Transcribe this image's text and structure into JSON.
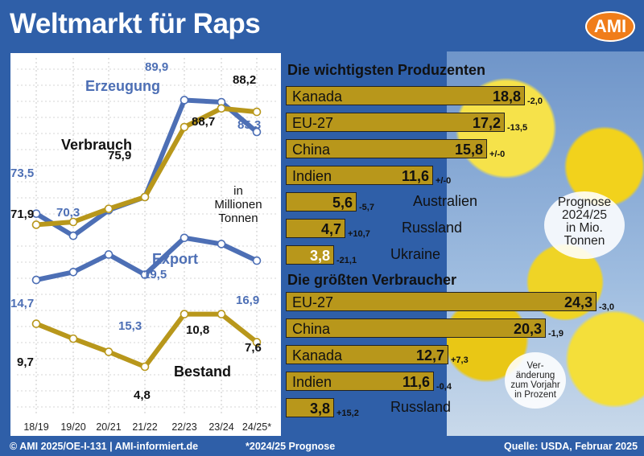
{
  "title": "Weltmarkt für Raps",
  "logo": "AMI",
  "footer": {
    "left": "© AMI 2025/OE-I-131 | AMI-informiert.de",
    "middle": "*2024/25 Prognose",
    "right": "Quelle: USDA, Februar 2025"
  },
  "colors": {
    "blue": "#4d6fb5",
    "gold": "#b8971b",
    "background": "#2f5fa8"
  },
  "chart_data": [
    {
      "type": "line",
      "title": "",
      "unit_note": "in Millionen Tonnen",
      "x": [
        "18/19",
        "19/20",
        "20/21",
        "21/22",
        "22/23",
        "23/24",
        "24/25*"
      ],
      "series": [
        {
          "name": "Erzeugung",
          "color": "#4d6fb5",
          "values": [
            73.5,
            70.3,
            74.0,
            75.9,
            89.9,
            89.6,
            85.3
          ]
        },
        {
          "name": "Verbrauch",
          "color": "#b8971b",
          "values": [
            71.9,
            72.3,
            74.2,
            75.9,
            86.0,
            88.7,
            88.2
          ]
        }
      ],
      "point_labels": [
        {
          "text": "73,5",
          "color": "#4d6fb5"
        },
        {
          "text": "71,9",
          "color": "#111111"
        },
        {
          "text": "70,3",
          "color": "#4d6fb5"
        },
        {
          "text": "75,9",
          "color": "#111111"
        },
        {
          "text": "89,9",
          "color": "#4d6fb5"
        },
        {
          "text": "88,7",
          "color": "#111111"
        },
        {
          "text": "88,2",
          "color": "#111111"
        },
        {
          "text": "85,3",
          "color": "#4d6fb5"
        }
      ]
    },
    {
      "type": "line",
      "title": "",
      "x": [
        "18/19",
        "19/20",
        "20/21",
        "21/22",
        "22/23",
        "23/24",
        "24/25*"
      ],
      "series": [
        {
          "name": "Export",
          "color": "#4d6fb5",
          "values": [
            14.7,
            15.6,
            17.6,
            15.3,
            19.5,
            18.8,
            16.9
          ]
        },
        {
          "name": "Bestand",
          "color": "#b8971b",
          "values": [
            9.7,
            8.0,
            6.5,
            4.8,
            10.8,
            10.8,
            7.6
          ]
        }
      ],
      "point_labels": [
        {
          "text": "14,7",
          "color": "#4d6fb5"
        },
        {
          "text": "15,3",
          "color": "#4d6fb5"
        },
        {
          "text": "19,5",
          "color": "#4d6fb5"
        },
        {
          "text": "16,9",
          "color": "#4d6fb5"
        },
        {
          "text": "9,7",
          "color": "#111111"
        },
        {
          "text": "4,8",
          "color": "#111111"
        },
        {
          "text": "10,8",
          "color": "#111111"
        },
        {
          "text": "7,6",
          "color": "#111111"
        }
      ]
    },
    {
      "type": "bar",
      "title": "Die wichtigsten Produzenten",
      "categories": [
        "Kanada",
        "EU-27",
        "China",
        "Indien",
        "Australien",
        "Russland",
        "Ukraine"
      ],
      "values": [
        18.8,
        17.2,
        15.8,
        11.6,
        5.6,
        4.7,
        3.8
      ],
      "value_labels": [
        "18,8",
        "17,2",
        "15,8",
        "11,6",
        "5,6",
        "4,7",
        "3,8"
      ],
      "changes": [
        "-2,0",
        "-13,5",
        "+/-0",
        "+/-0",
        "-5,7",
        "+10,7",
        "-21,1"
      ]
    },
    {
      "type": "bar",
      "title": "Die größten Verbraucher",
      "categories": [
        "EU-27",
        "China",
        "Kanada",
        "Indien",
        "Russland"
      ],
      "values": [
        24.3,
        20.3,
        12.7,
        11.6,
        3.8
      ],
      "value_labels": [
        "24,3",
        "20,3",
        "12,7",
        "11,6",
        "3,8"
      ],
      "changes": [
        "-3,0",
        "-1,9",
        "+7,3",
        "-0,4",
        "+15,2"
      ]
    }
  ],
  "notes": {
    "prognose": "Prognose 2024/25 in Mio. Tonnen",
    "veraenderung": "Ver-änderung zum Vorjahr in Prozent"
  }
}
